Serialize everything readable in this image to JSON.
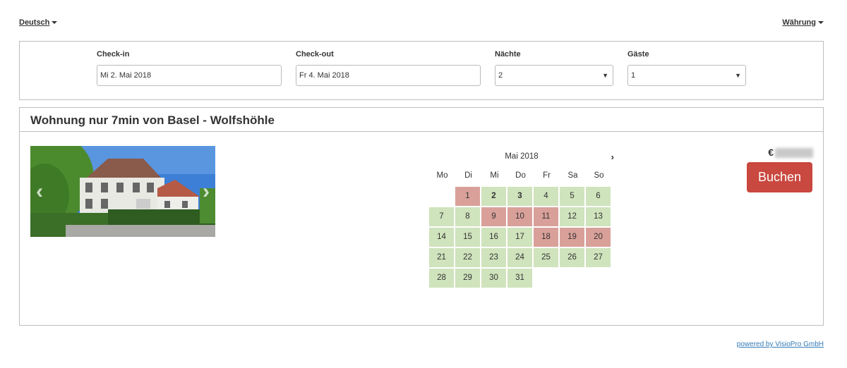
{
  "topbar": {
    "language": "Deutsch",
    "currency": "Währung"
  },
  "search": {
    "checkin_label": "Check-in",
    "checkin_value": "Mi 2. Mai 2018",
    "checkout_label": "Check-out",
    "checkout_value": "Fr 4. Mai 2018",
    "nights_label": "Nächte",
    "nights_value": "2",
    "guests_label": "Gäste",
    "guests_value": "1"
  },
  "listing": {
    "title": "Wohnung nur 7min von Basel - Wolfshöhle",
    "currency_symbol": "€",
    "book_label": "Buchen"
  },
  "calendar": {
    "month_label": "Mai 2018",
    "weekdays": [
      "Mo",
      "Di",
      "Mi",
      "Do",
      "Fr",
      "Sa",
      "So"
    ],
    "leading_empty": 1,
    "days": [
      {
        "d": "1",
        "s": "booked"
      },
      {
        "d": "2",
        "s": "free",
        "sel": true
      },
      {
        "d": "3",
        "s": "free",
        "sel": true
      },
      {
        "d": "4",
        "s": "free"
      },
      {
        "d": "5",
        "s": "free"
      },
      {
        "d": "6",
        "s": "free"
      },
      {
        "d": "7",
        "s": "free"
      },
      {
        "d": "8",
        "s": "free"
      },
      {
        "d": "9",
        "s": "booked"
      },
      {
        "d": "10",
        "s": "booked"
      },
      {
        "d": "11",
        "s": "booked"
      },
      {
        "d": "12",
        "s": "free"
      },
      {
        "d": "13",
        "s": "free"
      },
      {
        "d": "14",
        "s": "free"
      },
      {
        "d": "15",
        "s": "free"
      },
      {
        "d": "16",
        "s": "free"
      },
      {
        "d": "17",
        "s": "free"
      },
      {
        "d": "18",
        "s": "booked"
      },
      {
        "d": "19",
        "s": "booked"
      },
      {
        "d": "20",
        "s": "booked"
      },
      {
        "d": "21",
        "s": "free"
      },
      {
        "d": "22",
        "s": "free"
      },
      {
        "d": "23",
        "s": "free"
      },
      {
        "d": "24",
        "s": "free"
      },
      {
        "d": "25",
        "s": "free"
      },
      {
        "d": "26",
        "s": "free"
      },
      {
        "d": "27",
        "s": "free"
      },
      {
        "d": "28",
        "s": "free"
      },
      {
        "d": "29",
        "s": "free"
      },
      {
        "d": "30",
        "s": "free"
      },
      {
        "d": "31",
        "s": "free"
      }
    ]
  },
  "colors": {
    "free": "#cfe3bc",
    "booked": "#d9a09a",
    "accent": "#c9483f",
    "link": "#337ab7"
  },
  "icons": {
    "prev": "chevron-left-icon",
    "next": "chevron-right-icon",
    "dropdown": "caret-down-icon"
  },
  "footer": {
    "powered_by": "powered by VisioPro GmbH"
  }
}
